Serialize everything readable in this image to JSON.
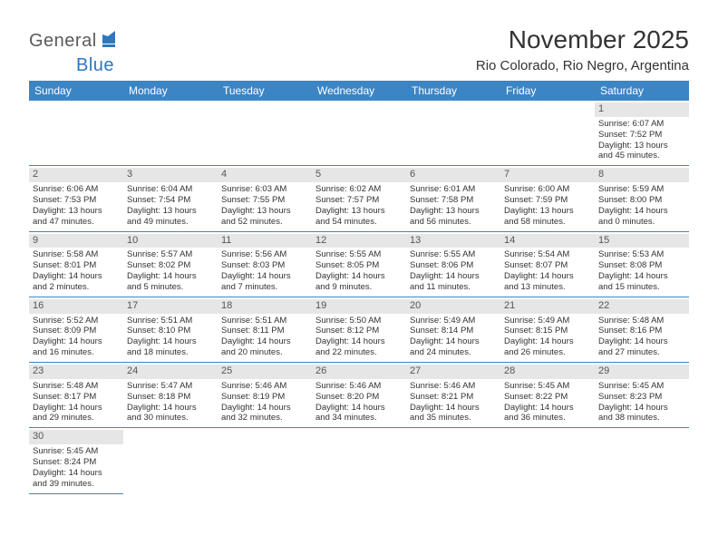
{
  "brand": {
    "part1": "General",
    "part2": "Blue"
  },
  "title": "November 2025",
  "location": "Rio Colorado, Rio Negro, Argentina",
  "colors": {
    "header_bg": "#3b85c5",
    "header_text": "#ffffff",
    "daynum_bg": "#e6e6e6",
    "daynum_text": "#555555",
    "border": "#3b85c5",
    "logo_dark": "#5a5a5a",
    "logo_blue": "#2f77bb"
  },
  "day_headers": [
    "Sunday",
    "Monday",
    "Tuesday",
    "Wednesday",
    "Thursday",
    "Friday",
    "Saturday"
  ],
  "weeks": [
    [
      null,
      null,
      null,
      null,
      null,
      null,
      {
        "n": "1",
        "sunrise": "Sunrise: 6:07 AM",
        "sunset": "Sunset: 7:52 PM",
        "day1": "Daylight: 13 hours",
        "day2": "and 45 minutes."
      }
    ],
    [
      {
        "n": "2",
        "sunrise": "Sunrise: 6:06 AM",
        "sunset": "Sunset: 7:53 PM",
        "day1": "Daylight: 13 hours",
        "day2": "and 47 minutes."
      },
      {
        "n": "3",
        "sunrise": "Sunrise: 6:04 AM",
        "sunset": "Sunset: 7:54 PM",
        "day1": "Daylight: 13 hours",
        "day2": "and 49 minutes."
      },
      {
        "n": "4",
        "sunrise": "Sunrise: 6:03 AM",
        "sunset": "Sunset: 7:55 PM",
        "day1": "Daylight: 13 hours",
        "day2": "and 52 minutes."
      },
      {
        "n": "5",
        "sunrise": "Sunrise: 6:02 AM",
        "sunset": "Sunset: 7:57 PM",
        "day1": "Daylight: 13 hours",
        "day2": "and 54 minutes."
      },
      {
        "n": "6",
        "sunrise": "Sunrise: 6:01 AM",
        "sunset": "Sunset: 7:58 PM",
        "day1": "Daylight: 13 hours",
        "day2": "and 56 minutes."
      },
      {
        "n": "7",
        "sunrise": "Sunrise: 6:00 AM",
        "sunset": "Sunset: 7:59 PM",
        "day1": "Daylight: 13 hours",
        "day2": "and 58 minutes."
      },
      {
        "n": "8",
        "sunrise": "Sunrise: 5:59 AM",
        "sunset": "Sunset: 8:00 PM",
        "day1": "Daylight: 14 hours",
        "day2": "and 0 minutes."
      }
    ],
    [
      {
        "n": "9",
        "sunrise": "Sunrise: 5:58 AM",
        "sunset": "Sunset: 8:01 PM",
        "day1": "Daylight: 14 hours",
        "day2": "and 2 minutes."
      },
      {
        "n": "10",
        "sunrise": "Sunrise: 5:57 AM",
        "sunset": "Sunset: 8:02 PM",
        "day1": "Daylight: 14 hours",
        "day2": "and 5 minutes."
      },
      {
        "n": "11",
        "sunrise": "Sunrise: 5:56 AM",
        "sunset": "Sunset: 8:03 PM",
        "day1": "Daylight: 14 hours",
        "day2": "and 7 minutes."
      },
      {
        "n": "12",
        "sunrise": "Sunrise: 5:55 AM",
        "sunset": "Sunset: 8:05 PM",
        "day1": "Daylight: 14 hours",
        "day2": "and 9 minutes."
      },
      {
        "n": "13",
        "sunrise": "Sunrise: 5:55 AM",
        "sunset": "Sunset: 8:06 PM",
        "day1": "Daylight: 14 hours",
        "day2": "and 11 minutes."
      },
      {
        "n": "14",
        "sunrise": "Sunrise: 5:54 AM",
        "sunset": "Sunset: 8:07 PM",
        "day1": "Daylight: 14 hours",
        "day2": "and 13 minutes."
      },
      {
        "n": "15",
        "sunrise": "Sunrise: 5:53 AM",
        "sunset": "Sunset: 8:08 PM",
        "day1": "Daylight: 14 hours",
        "day2": "and 15 minutes."
      }
    ],
    [
      {
        "n": "16",
        "sunrise": "Sunrise: 5:52 AM",
        "sunset": "Sunset: 8:09 PM",
        "day1": "Daylight: 14 hours",
        "day2": "and 16 minutes."
      },
      {
        "n": "17",
        "sunrise": "Sunrise: 5:51 AM",
        "sunset": "Sunset: 8:10 PM",
        "day1": "Daylight: 14 hours",
        "day2": "and 18 minutes."
      },
      {
        "n": "18",
        "sunrise": "Sunrise: 5:51 AM",
        "sunset": "Sunset: 8:11 PM",
        "day1": "Daylight: 14 hours",
        "day2": "and 20 minutes."
      },
      {
        "n": "19",
        "sunrise": "Sunrise: 5:50 AM",
        "sunset": "Sunset: 8:12 PM",
        "day1": "Daylight: 14 hours",
        "day2": "and 22 minutes."
      },
      {
        "n": "20",
        "sunrise": "Sunrise: 5:49 AM",
        "sunset": "Sunset: 8:14 PM",
        "day1": "Daylight: 14 hours",
        "day2": "and 24 minutes."
      },
      {
        "n": "21",
        "sunrise": "Sunrise: 5:49 AM",
        "sunset": "Sunset: 8:15 PM",
        "day1": "Daylight: 14 hours",
        "day2": "and 26 minutes."
      },
      {
        "n": "22",
        "sunrise": "Sunrise: 5:48 AM",
        "sunset": "Sunset: 8:16 PM",
        "day1": "Daylight: 14 hours",
        "day2": "and 27 minutes."
      }
    ],
    [
      {
        "n": "23",
        "sunrise": "Sunrise: 5:48 AM",
        "sunset": "Sunset: 8:17 PM",
        "day1": "Daylight: 14 hours",
        "day2": "and 29 minutes."
      },
      {
        "n": "24",
        "sunrise": "Sunrise: 5:47 AM",
        "sunset": "Sunset: 8:18 PM",
        "day1": "Daylight: 14 hours",
        "day2": "and 30 minutes."
      },
      {
        "n": "25",
        "sunrise": "Sunrise: 5:46 AM",
        "sunset": "Sunset: 8:19 PM",
        "day1": "Daylight: 14 hours",
        "day2": "and 32 minutes."
      },
      {
        "n": "26",
        "sunrise": "Sunrise: 5:46 AM",
        "sunset": "Sunset: 8:20 PM",
        "day1": "Daylight: 14 hours",
        "day2": "and 34 minutes."
      },
      {
        "n": "27",
        "sunrise": "Sunrise: 5:46 AM",
        "sunset": "Sunset: 8:21 PM",
        "day1": "Daylight: 14 hours",
        "day2": "and 35 minutes."
      },
      {
        "n": "28",
        "sunrise": "Sunrise: 5:45 AM",
        "sunset": "Sunset: 8:22 PM",
        "day1": "Daylight: 14 hours",
        "day2": "and 36 minutes."
      },
      {
        "n": "29",
        "sunrise": "Sunrise: 5:45 AM",
        "sunset": "Sunset: 8:23 PM",
        "day1": "Daylight: 14 hours",
        "day2": "and 38 minutes."
      }
    ],
    [
      {
        "n": "30",
        "sunrise": "Sunrise: 5:45 AM",
        "sunset": "Sunset: 8:24 PM",
        "day1": "Daylight: 14 hours",
        "day2": "and 39 minutes."
      },
      null,
      null,
      null,
      null,
      null,
      null
    ]
  ]
}
